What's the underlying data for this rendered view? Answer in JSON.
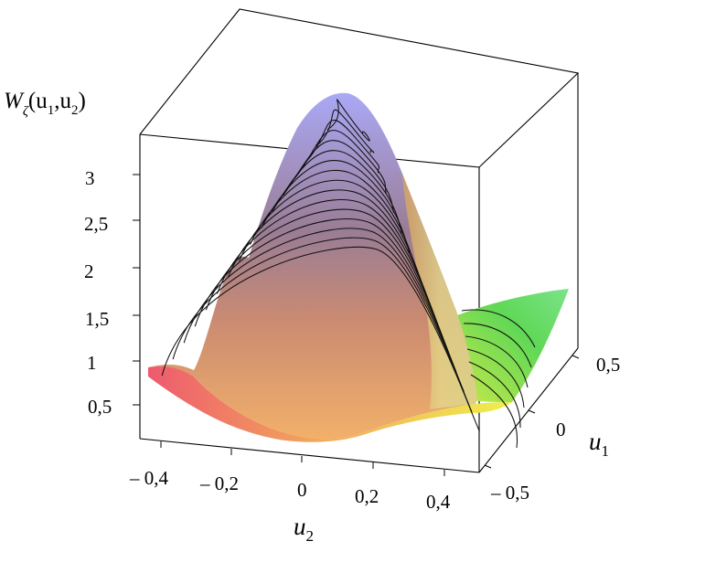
{
  "chart_data": {
    "type": "surface3d",
    "title": "",
    "zlabel": {
      "base": "W",
      "subscript": "ζ",
      "args": "(u",
      "arg1_sub": "1",
      "sep": ",u",
      "arg2_sub": "2",
      "close": ")"
    },
    "xlabel": {
      "base": "u",
      "subscript": "2"
    },
    "ylabel": {
      "base": "u",
      "subscript": "1"
    },
    "x_ticks": [
      "– 0,4",
      "– 0,2",
      "0",
      "0,2",
      "0,4"
    ],
    "y_ticks": [
      "– 0,5",
      "0",
      "0,5"
    ],
    "z_ticks": [
      "0,5",
      "1",
      "1,5",
      "2",
      "2,5",
      "3"
    ],
    "xlim": [
      -0.5,
      0.5
    ],
    "ylim": [
      -0.5,
      0.5
    ],
    "zlim": [
      0,
      3.4
    ],
    "peak": {
      "x": 0.0,
      "y": 0.0,
      "z": 3.35
    },
    "contour_levels": 16,
    "colors": {
      "low_left": "#e8505f",
      "mid": "#f4b55a",
      "low_right": "#e8ef4a",
      "high": "#a8a8f2",
      "right_lobe": "#6ee05a"
    }
  }
}
